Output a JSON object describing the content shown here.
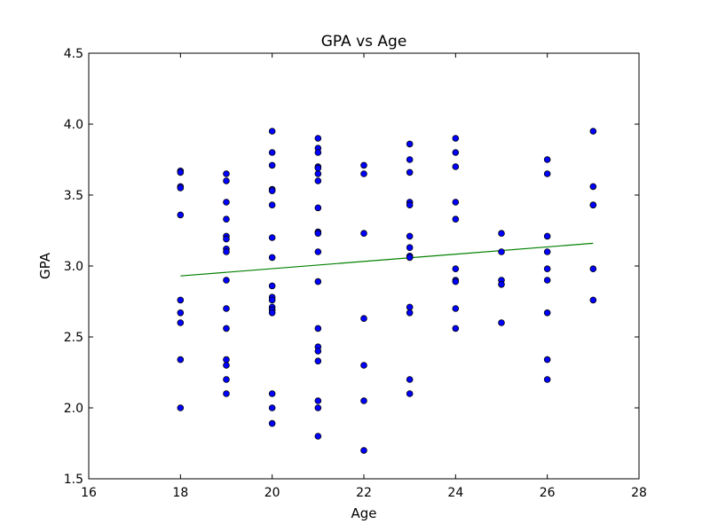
{
  "chart_data": {
    "type": "scatter",
    "title": "GPA vs Age",
    "xlabel": "Age",
    "ylabel": "GPA",
    "xlim": [
      16,
      28
    ],
    "ylim": [
      1.5,
      4.5
    ],
    "xticks": [
      "16",
      "18",
      "20",
      "22",
      "24",
      "26",
      "28"
    ],
    "yticks": [
      "1.5",
      "2.0",
      "2.5",
      "3.0",
      "3.5",
      "4.0",
      "4.5"
    ],
    "grid": false,
    "legend": false,
    "marker_color": "#0000ff",
    "trend_color": "#008000",
    "trendline": {
      "x": [
        18,
        27
      ],
      "y": [
        2.93,
        3.16
      ]
    },
    "points": [
      {
        "x": 18,
        "y": 3.67
      },
      {
        "x": 18,
        "y": 3.66
      },
      {
        "x": 18,
        "y": 3.56
      },
      {
        "x": 18,
        "y": 3.55
      },
      {
        "x": 18,
        "y": 3.36
      },
      {
        "x": 18,
        "y": 2.76
      },
      {
        "x": 18,
        "y": 2.67
      },
      {
        "x": 18,
        "y": 2.6
      },
      {
        "x": 18,
        "y": 2.34
      },
      {
        "x": 18,
        "y": 2.0
      },
      {
        "x": 19,
        "y": 3.65
      },
      {
        "x": 19,
        "y": 3.6
      },
      {
        "x": 19,
        "y": 3.45
      },
      {
        "x": 19,
        "y": 3.33
      },
      {
        "x": 19,
        "y": 3.21
      },
      {
        "x": 19,
        "y": 3.19
      },
      {
        "x": 19,
        "y": 3.12
      },
      {
        "x": 19,
        "y": 3.1
      },
      {
        "x": 19,
        "y": 2.9
      },
      {
        "x": 19,
        "y": 2.7
      },
      {
        "x": 19,
        "y": 2.56
      },
      {
        "x": 19,
        "y": 2.34
      },
      {
        "x": 19,
        "y": 2.3
      },
      {
        "x": 19,
        "y": 2.2
      },
      {
        "x": 19,
        "y": 2.1
      },
      {
        "x": 20,
        "y": 3.95
      },
      {
        "x": 20,
        "y": 3.8
      },
      {
        "x": 20,
        "y": 3.71
      },
      {
        "x": 20,
        "y": 3.54
      },
      {
        "x": 20,
        "y": 3.53
      },
      {
        "x": 20,
        "y": 3.43
      },
      {
        "x": 20,
        "y": 3.2
      },
      {
        "x": 20,
        "y": 3.06
      },
      {
        "x": 20,
        "y": 2.86
      },
      {
        "x": 20,
        "y": 2.78
      },
      {
        "x": 20,
        "y": 2.76
      },
      {
        "x": 20,
        "y": 2.71
      },
      {
        "x": 20,
        "y": 2.69
      },
      {
        "x": 20,
        "y": 2.67
      },
      {
        "x": 20,
        "y": 2.1
      },
      {
        "x": 20,
        "y": 2.0
      },
      {
        "x": 20,
        "y": 1.89
      },
      {
        "x": 21,
        "y": 3.9
      },
      {
        "x": 21,
        "y": 3.83
      },
      {
        "x": 21,
        "y": 3.8
      },
      {
        "x": 21,
        "y": 3.7
      },
      {
        "x": 21,
        "y": 3.69
      },
      {
        "x": 21,
        "y": 3.65
      },
      {
        "x": 21,
        "y": 3.6
      },
      {
        "x": 21,
        "y": 3.41
      },
      {
        "x": 21,
        "y": 3.24
      },
      {
        "x": 21,
        "y": 3.23
      },
      {
        "x": 21,
        "y": 3.1
      },
      {
        "x": 21,
        "y": 2.89
      },
      {
        "x": 21,
        "y": 2.56
      },
      {
        "x": 21,
        "y": 2.43
      },
      {
        "x": 21,
        "y": 2.4
      },
      {
        "x": 21,
        "y": 2.33
      },
      {
        "x": 21,
        "y": 2.05
      },
      {
        "x": 21,
        "y": 2.0
      },
      {
        "x": 21,
        "y": 1.8
      },
      {
        "x": 22,
        "y": 3.71
      },
      {
        "x": 22,
        "y": 3.65
      },
      {
        "x": 22,
        "y": 3.23
      },
      {
        "x": 22,
        "y": 2.63
      },
      {
        "x": 22,
        "y": 2.3
      },
      {
        "x": 22,
        "y": 2.05
      },
      {
        "x": 22,
        "y": 1.7
      },
      {
        "x": 23,
        "y": 3.86
      },
      {
        "x": 23,
        "y": 3.75
      },
      {
        "x": 23,
        "y": 3.66
      },
      {
        "x": 23,
        "y": 3.45
      },
      {
        "x": 23,
        "y": 3.43
      },
      {
        "x": 23,
        "y": 3.21
      },
      {
        "x": 23,
        "y": 3.13
      },
      {
        "x": 23,
        "y": 3.07
      },
      {
        "x": 23,
        "y": 3.06
      },
      {
        "x": 23,
        "y": 2.71
      },
      {
        "x": 23,
        "y": 2.67
      },
      {
        "x": 23,
        "y": 2.2
      },
      {
        "x": 23,
        "y": 2.1
      },
      {
        "x": 24,
        "y": 3.9
      },
      {
        "x": 24,
        "y": 3.8
      },
      {
        "x": 24,
        "y": 3.7
      },
      {
        "x": 24,
        "y": 3.45
      },
      {
        "x": 24,
        "y": 3.33
      },
      {
        "x": 24,
        "y": 2.98
      },
      {
        "x": 24,
        "y": 2.9
      },
      {
        "x": 24,
        "y": 2.89
      },
      {
        "x": 24,
        "y": 2.7
      },
      {
        "x": 24,
        "y": 2.56
      },
      {
        "x": 25,
        "y": 3.23
      },
      {
        "x": 25,
        "y": 3.1
      },
      {
        "x": 25,
        "y": 2.9
      },
      {
        "x": 25,
        "y": 2.87
      },
      {
        "x": 25,
        "y": 2.6
      },
      {
        "x": 26,
        "y": 3.75
      },
      {
        "x": 26,
        "y": 3.65
      },
      {
        "x": 26,
        "y": 3.21
      },
      {
        "x": 26,
        "y": 3.1
      },
      {
        "x": 26,
        "y": 2.98
      },
      {
        "x": 26,
        "y": 2.9
      },
      {
        "x": 26,
        "y": 2.67
      },
      {
        "x": 26,
        "y": 2.34
      },
      {
        "x": 26,
        "y": 2.2
      },
      {
        "x": 27,
        "y": 3.95
      },
      {
        "x": 27,
        "y": 3.56
      },
      {
        "x": 27,
        "y": 3.43
      },
      {
        "x": 27,
        "y": 3.43
      },
      {
        "x": 27,
        "y": 2.98
      },
      {
        "x": 27,
        "y": 2.76
      }
    ]
  }
}
